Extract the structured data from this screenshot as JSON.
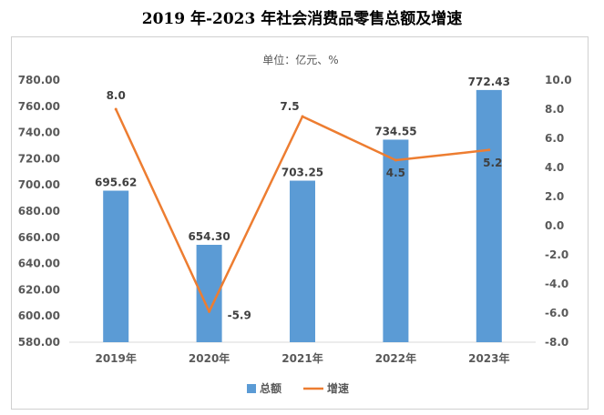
{
  "title": "2019 年-2023 年社会消费品零售总额及增速",
  "chart_data": {
    "type": "bar",
    "unit_label": "单位：亿元、%",
    "categories": [
      "2019年",
      "2020年",
      "2021年",
      "2022年",
      "2023年"
    ],
    "series": [
      {
        "name": "总额",
        "type": "bar",
        "axis": "left",
        "color": "#5b9bd5",
        "values": [
          695.62,
          654.3,
          703.25,
          734.55,
          772.43
        ],
        "labels": [
          "695.62",
          "654.30",
          "703.25",
          "734.55",
          "772.43"
        ]
      },
      {
        "name": "增速",
        "type": "line",
        "axis": "right",
        "color": "#ed7d31",
        "values": [
          8.0,
          -5.9,
          7.5,
          4.5,
          5.2
        ],
        "labels": [
          "8.0",
          "-5.9",
          "7.5",
          "4.5",
          "5.2"
        ]
      }
    ],
    "left_axis": {
      "ylim": [
        580,
        780
      ],
      "ticks": [
        "580.00",
        "600.00",
        "620.00",
        "640.00",
        "660.00",
        "680.00",
        "700.00",
        "720.00",
        "740.00",
        "760.00",
        "780.00"
      ]
    },
    "right_axis": {
      "ylim": [
        -8,
        10
      ],
      "ticks": [
        "-8.0",
        "-6.0",
        "-4.0",
        "-2.0",
        "0.0",
        "2.0",
        "4.0",
        "6.0",
        "8.0",
        "10.0"
      ]
    },
    "grid": false,
    "legend": "bottom"
  }
}
